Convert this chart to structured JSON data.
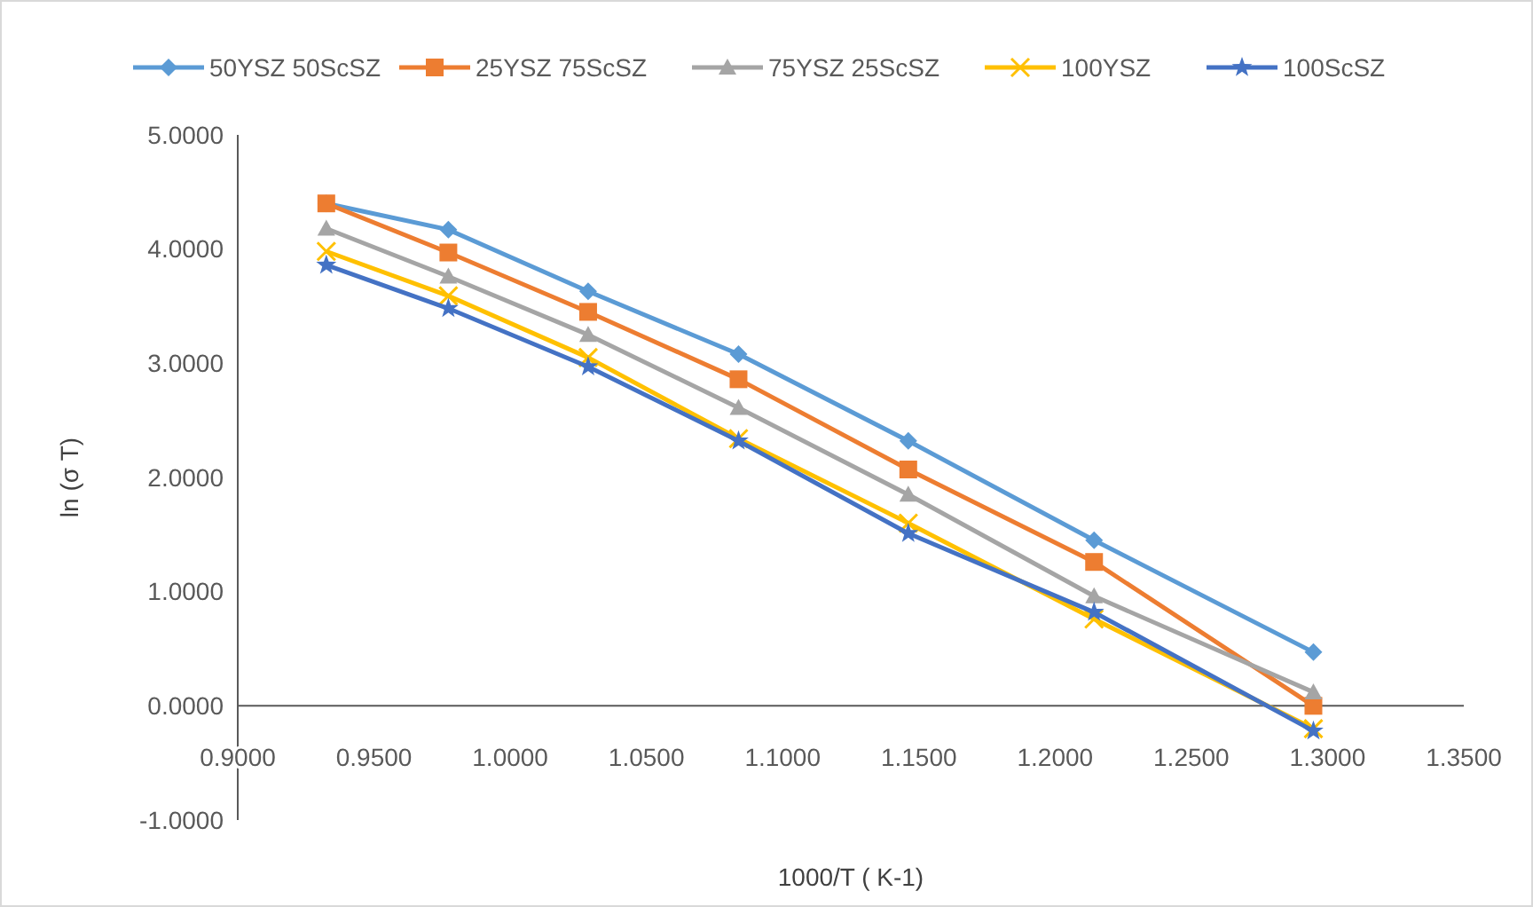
{
  "chart_data": {
    "type": "line",
    "xlabel": "1000/T ( K-1)",
    "ylabel": "ln (σ T)",
    "x": [
      0.9325,
      0.9773,
      1.0286,
      1.0838,
      1.1461,
      1.2143,
      1.2948
    ],
    "series": [
      {
        "name": "50YSZ 50ScSZ",
        "color": "#5b9bd5",
        "marker": "diamond",
        "values": [
          4.4,
          4.17,
          3.63,
          3.08,
          2.32,
          1.45,
          0.47
        ]
      },
      {
        "name": "25YSZ 75ScSZ",
        "color": "#ed7d31",
        "marker": "square",
        "values": [
          4.4,
          3.97,
          3.45,
          2.86,
          2.07,
          1.26,
          0.0
        ]
      },
      {
        "name": "75YSZ 25ScSZ",
        "color": "#a5a5a5",
        "marker": "triangle",
        "values": [
          4.18,
          3.76,
          3.25,
          2.61,
          1.85,
          0.96,
          0.12
        ]
      },
      {
        "name": "100YSZ",
        "color": "#ffc000",
        "marker": "cross",
        "values": [
          3.98,
          3.59,
          3.05,
          2.34,
          1.6,
          0.76,
          -0.2
        ]
      },
      {
        "name": "100ScSZ",
        "color": "#4472c4",
        "marker": "star",
        "values": [
          3.86,
          3.48,
          2.97,
          2.32,
          1.51,
          0.82,
          -0.22
        ]
      }
    ],
    "xlim": [
      0.9,
      1.35
    ],
    "xticks": [
      {
        "value": 0.9,
        "label": "0.9000"
      },
      {
        "value": 0.95,
        "label": "0.9500"
      },
      {
        "value": 1.0,
        "label": "1.0000"
      },
      {
        "value": 1.05,
        "label": "1.0500"
      },
      {
        "value": 1.1,
        "label": "1.1000"
      },
      {
        "value": 1.15,
        "label": "1.1500"
      },
      {
        "value": 1.2,
        "label": "1.2000"
      },
      {
        "value": 1.25,
        "label": "1.2500"
      },
      {
        "value": 1.3,
        "label": "1.3000"
      },
      {
        "value": 1.35,
        "label": "1.3500"
      }
    ],
    "ylim": [
      -1,
      5
    ],
    "yticks": [
      {
        "value": -1,
        "label": "-1.0000"
      },
      {
        "value": 0,
        "label": "0.0000"
      },
      {
        "value": 1,
        "label": "1.0000"
      },
      {
        "value": 2,
        "label": "2.0000"
      },
      {
        "value": 3,
        "label": "3.0000"
      },
      {
        "value": 4,
        "label": "4.0000"
      },
      {
        "value": 5,
        "label": "5.0000"
      }
    ],
    "legend": "top",
    "grid": false,
    "line_style": "solid"
  }
}
